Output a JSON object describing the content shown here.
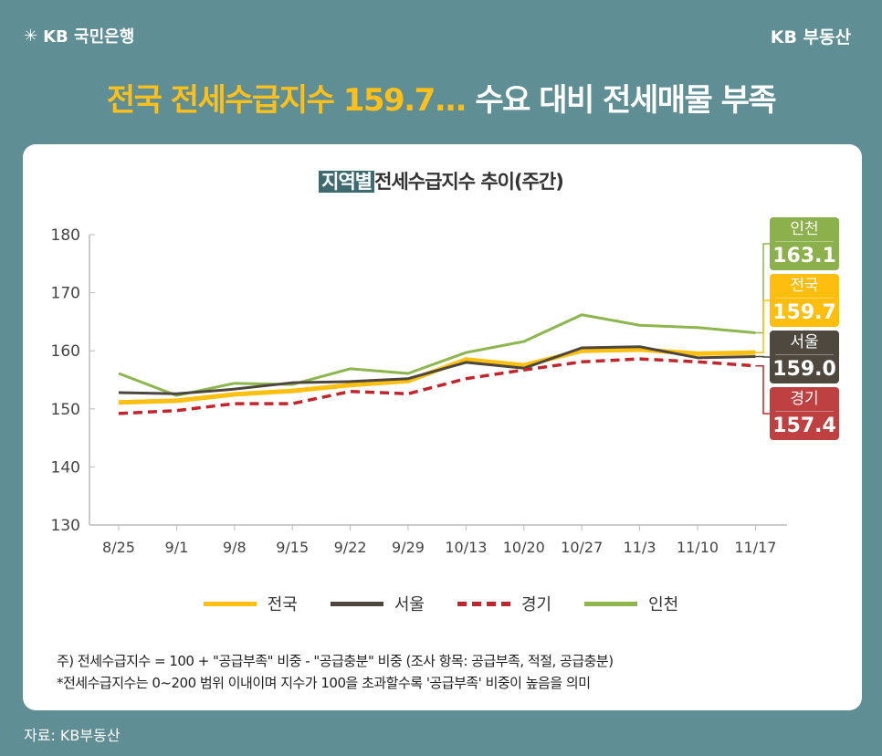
{
  "header": {
    "bank_logo": "KB 국민은행",
    "brand": "KB 부동산",
    "headline_highlight": "전국 전세수급지수 159.7...",
    "headline_rest": " 수요 대비 전세매물 부족"
  },
  "chart_data": {
    "type": "line",
    "title_highlight": "지역별",
    "title_rest": "전세수급지수 추이(주간)",
    "categories": [
      "8/25",
      "9/1",
      "9/8",
      "9/15",
      "9/22",
      "9/29",
      "10/13",
      "10/20",
      "10/27",
      "11/3",
      "11/10",
      "11/17"
    ],
    "ylim": [
      130,
      180
    ],
    "yticks": [
      130,
      140,
      150,
      160,
      170,
      180
    ],
    "grid": false,
    "legend_placement": "bottom",
    "series": [
      {
        "name": "전국",
        "color": "#fdc010",
        "dash": false,
        "values": [
          151.1,
          151.4,
          152.5,
          153.1,
          154.1,
          154.8,
          158.5,
          157.5,
          160.0,
          160.2,
          159.5,
          159.7
        ],
        "end_label": "159.7"
      },
      {
        "name": "서울",
        "color": "#4d463e",
        "dash": false,
        "values": [
          152.8,
          152.6,
          153.4,
          154.5,
          154.7,
          155.2,
          158.0,
          157.0,
          160.5,
          160.7,
          158.8,
          159.0
        ],
        "end_label": "159.0"
      },
      {
        "name": "경기",
        "color": "#c0262b",
        "dash": true,
        "values": [
          149.2,
          149.7,
          150.9,
          150.9,
          153.0,
          152.6,
          155.2,
          156.7,
          158.1,
          158.6,
          158.1,
          157.4
        ],
        "end_label": "157.4"
      },
      {
        "name": "인천",
        "color": "#8db64e",
        "dash": false,
        "values": [
          156.1,
          152.3,
          154.4,
          154.2,
          156.9,
          156.1,
          159.7,
          161.6,
          166.2,
          164.4,
          164.0,
          163.1
        ],
        "end_label": "163.1"
      }
    ],
    "tag_colors": {
      "인천": "#8bb04c",
      "전국": "#fdbe10",
      "서울": "#4f483f",
      "경기": "#bf4040"
    }
  },
  "notes": [
    "주) 전세수급지수 = 100 + \"공급부족\" 비중 - \"공급충분\" 비중 (조사 항목: 공급부족, 적절, 공급충분)",
    "*전세수급지수는 0~200 범위 이내이며 지수가 100을 초과할수록 '공급부족' 비중이 높음을 의미"
  ],
  "source": "자료: KB부동산"
}
